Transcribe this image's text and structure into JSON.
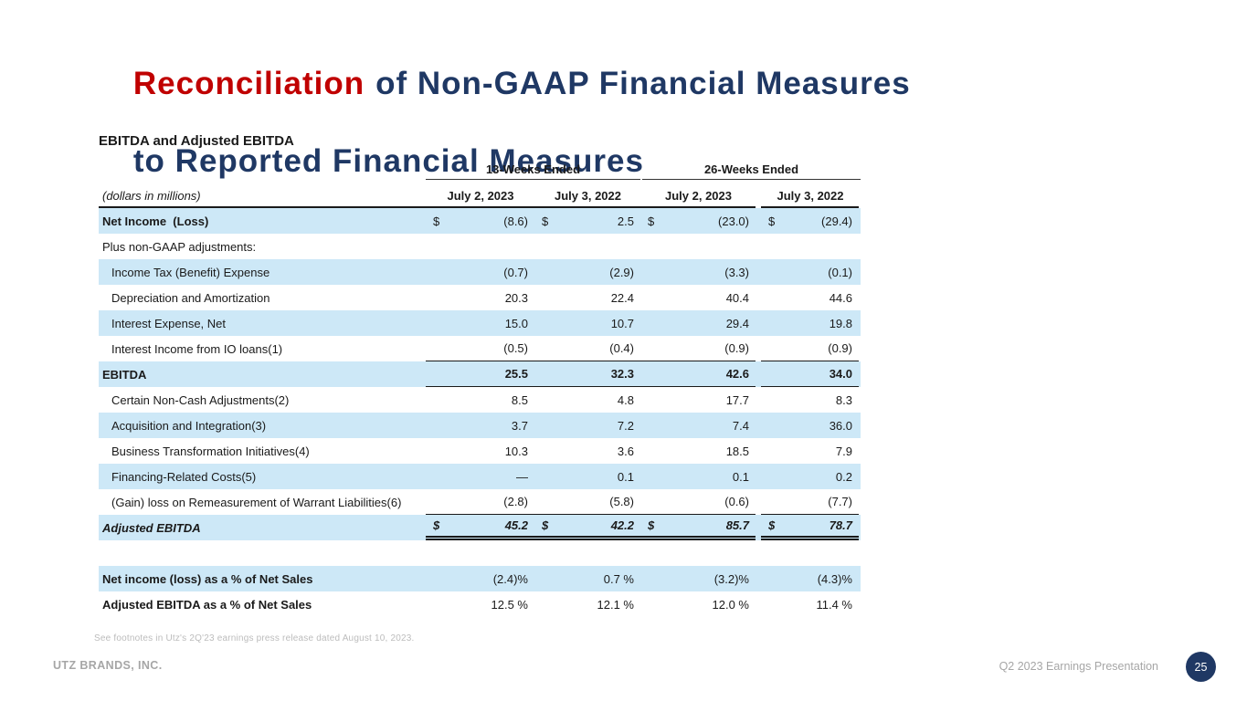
{
  "title": {
    "line1_highlight": "Reconciliation",
    "line1_rest": "of Non-GAAP Financial Measures",
    "line2": "to Reported Financial Measures"
  },
  "subtitle": "EBITDA and Adjusted EBITDA",
  "table": {
    "unit_label": "(dollars in millions)",
    "col_groups": [
      "13-Weeks Ended",
      "26-Weeks Ended"
    ],
    "col_headers": [
      "July 2, 2023",
      "July 3, 2022",
      "July 2, 2023",
      "July 3, 2022"
    ],
    "rows": [
      {
        "label": "Net Income  (Loss)",
        "dollar": true,
        "values": [
          "(8.6)",
          "2.5",
          "(23.0)",
          "(29.4)"
        ],
        "shaded": true,
        "bold_label": true
      },
      {
        "label": "Plus non-GAAP adjustments:",
        "values": [
          "",
          "",
          "",
          ""
        ],
        "shaded": false
      },
      {
        "label": "Income Tax (Benefit) Expense",
        "values": [
          "(0.7)",
          "(2.9)",
          "(3.3)",
          "(0.1)"
        ],
        "shaded": true,
        "indent": true
      },
      {
        "label": "Depreciation and Amortization",
        "values": [
          "20.3",
          "22.4",
          "40.4",
          "44.6"
        ],
        "shaded": false,
        "indent": true
      },
      {
        "label": "Interest Expense, Net",
        "values": [
          "15.0",
          "10.7",
          "29.4",
          "19.8"
        ],
        "shaded": true,
        "indent": true
      },
      {
        "label": "Interest Income from IO loans(1)",
        "values": [
          "(0.5)",
          "(0.4)",
          "(0.9)",
          "(0.9)"
        ],
        "shaded": false,
        "indent": true,
        "underline": true
      },
      {
        "label": "EBITDA",
        "values": [
          "25.5",
          "32.3",
          "42.6",
          "34.0"
        ],
        "shaded": true,
        "bold_label": true,
        "bold_values": true,
        "underline": true
      },
      {
        "label": "Certain Non-Cash Adjustments(2)",
        "values": [
          "8.5",
          "4.8",
          "17.7",
          "8.3"
        ],
        "shaded": false,
        "indent": true
      },
      {
        "label": "Acquisition and Integration(3)",
        "values": [
          "3.7",
          "7.2",
          "7.4",
          "36.0"
        ],
        "shaded": true,
        "indent": true
      },
      {
        "label": "Business Transformation Initiatives(4)",
        "values": [
          "10.3",
          "3.6",
          "18.5",
          "7.9"
        ],
        "shaded": false,
        "indent": true
      },
      {
        "label": "Financing-Related Costs(5)",
        "values": [
          "—",
          "0.1",
          "0.1",
          "0.2"
        ],
        "shaded": true,
        "indent": true
      },
      {
        "label": "(Gain) loss on Remeasurement of Warrant Liabilities(6)",
        "values": [
          "(2.8)",
          "(5.8)",
          "(0.6)",
          "(7.7)"
        ],
        "shaded": false,
        "indent": true,
        "underline": true
      },
      {
        "label": "Adjusted EBITDA",
        "dollar": true,
        "values": [
          "45.2",
          "42.2",
          "85.7",
          "78.7"
        ],
        "shaded": true,
        "bold_label": true,
        "bold_values": true,
        "italic": true,
        "double_underline": true
      }
    ],
    "ratio_rows": [
      {
        "label": "Net income (loss) as a % of Net Sales",
        "values": [
          "(2.4)%",
          "0.7 %",
          "(3.2)%",
          "(4.3)%"
        ],
        "shaded": true,
        "bold_label": true
      },
      {
        "label": "Adjusted EBITDA as a % of Net Sales",
        "values": [
          "12.5 %",
          "12.1 %",
          "12.0 %",
          "11.4 %"
        ],
        "shaded": false,
        "bold_label": true
      }
    ]
  },
  "footnote": "See footnotes  in Utz's 2Q'23  earnings press release  dated August 10, 2023.",
  "footer": {
    "left": "UTZ BRANDS, INC.",
    "right": "Q2 2023 Earnings Presentation",
    "page": "25"
  },
  "colors": {
    "accent_red": "#c00000",
    "navy": "#1f3864",
    "row_blue": "#cde8f7",
    "footer_gray": "#a6a6a6"
  }
}
